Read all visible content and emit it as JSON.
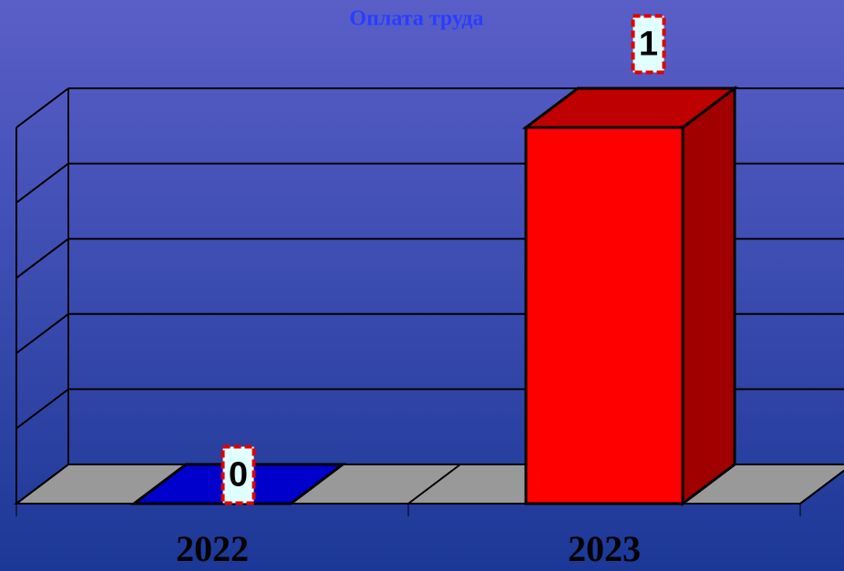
{
  "chart_data": {
    "type": "bar3d",
    "title": "Оплата труда",
    "categories": [
      "2022",
      "2023"
    ],
    "values": [
      0,
      1
    ],
    "colors": [
      "#0000cc",
      "#ff0000"
    ],
    "ylim": [
      0,
      1
    ],
    "yticks": [
      0,
      0.2,
      0.4,
      0.6,
      0.8,
      1
    ],
    "grid": true
  }
}
